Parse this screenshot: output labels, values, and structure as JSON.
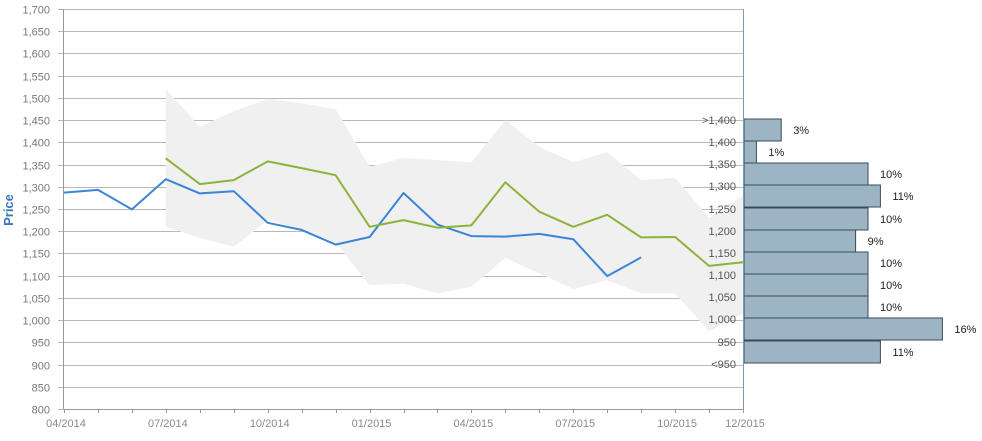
{
  "chart_data": {
    "type": "line",
    "ylabel": "Price",
    "ylim": [
      800,
      1700
    ],
    "ytick_step": 50,
    "y_ticks": [
      "800",
      "850",
      "900",
      "950",
      "1,000",
      "1,050",
      "1,100",
      "1,150",
      "1,200",
      "1,250",
      "1,300",
      "1,350",
      "1,400",
      "1,450",
      "1,500",
      "1,550",
      "1,600",
      "1,650",
      "1,700"
    ],
    "x_ticks": [
      "04/2014",
      "07/2014",
      "10/2014",
      "01/2015",
      "04/2015",
      "07/2015",
      "10/2015",
      "12/2015"
    ],
    "grid": true,
    "series": [
      {
        "color": "#3a85d6",
        "x": [
          "2014-04",
          "2014-05",
          "2014-06",
          "2014-07",
          "2014-08",
          "2014-09",
          "2014-10",
          "2014-11",
          "2014-12",
          "2015-01",
          "2015-02",
          "2015-03",
          "2015-04",
          "2015-05",
          "2015-06",
          "2015-07",
          "2015-08",
          "2015-09"
        ],
        "values": [
          1287,
          1293,
          1249,
          1317,
          1285,
          1290,
          1219,
          1203,
          1170,
          1187,
          1286,
          1215,
          1189,
          1188,
          1194,
          1182,
          1099,
          1141
        ]
      },
      {
        "color": "#8db33a",
        "x": [
          "2014-07",
          "2014-08",
          "2014-09",
          "2014-10",
          "2014-11",
          "2014-12",
          "2015-01",
          "2015-02",
          "2015-03",
          "2015-04",
          "2015-05",
          "2015-06",
          "2015-07",
          "2015-08",
          "2015-09",
          "2015-10",
          "2015-11",
          "2015-12"
        ],
        "values": [
          1364,
          1306,
          1315,
          1357,
          1342,
          1326,
          1210,
          1225,
          1208,
          1213,
          1310,
          1244,
          1210,
          1237,
          1186,
          1187,
          1122,
          1130
        ]
      }
    ],
    "band": {
      "color": "#f0f0f0",
      "x": [
        "2014-07",
        "2014-08",
        "2014-09",
        "2014-10",
        "2014-11",
        "2014-12",
        "2015-01",
        "2015-02",
        "2015-03",
        "2015-04",
        "2015-05",
        "2015-06",
        "2015-07",
        "2015-08",
        "2015-09",
        "2015-10",
        "2015-11",
        "2015-12"
      ],
      "upper": [
        1520,
        1435,
        1470,
        1498,
        1488,
        1475,
        1345,
        1365,
        1360,
        1355,
        1450,
        1390,
        1355,
        1378,
        1315,
        1320,
        1230,
        1280
      ],
      "lower": [
        1210,
        1185,
        1165,
        1225,
        1205,
        1175,
        1078,
        1082,
        1060,
        1075,
        1140,
        1105,
        1070,
        1090,
        1060,
        1060,
        975,
        1015
      ]
    },
    "distribution": {
      "type": "horizontal-bar",
      "color": "#9cb5c5",
      "bins": [
        {
          "label": ">1,400",
          "pct": 3,
          "pct_label": "3%"
        },
        {
          "label": "1,400",
          "pct": 1,
          "pct_label": "1%"
        },
        {
          "label": "1,350",
          "pct": 10,
          "pct_label": "10%"
        },
        {
          "label": "1,300",
          "pct": 11,
          "pct_label": "11%"
        },
        {
          "label": "1,250",
          "pct": 10,
          "pct_label": "10%"
        },
        {
          "label": "1,200",
          "pct": 9,
          "pct_label": "9%"
        },
        {
          "label": "1,150",
          "pct": 10,
          "pct_label": "10%"
        },
        {
          "label": "1,100",
          "pct": 10,
          "pct_label": "10%"
        },
        {
          "label": "1,050",
          "pct": 10,
          "pct_label": "10%"
        },
        {
          "label": "1,000",
          "pct": 16,
          "pct_label": "16%"
        },
        {
          "label": "950",
          "pct": 11,
          "pct_label": "11%"
        },
        {
          "label": "<950",
          "pct": null,
          "pct_label": ""
        }
      ]
    }
  }
}
